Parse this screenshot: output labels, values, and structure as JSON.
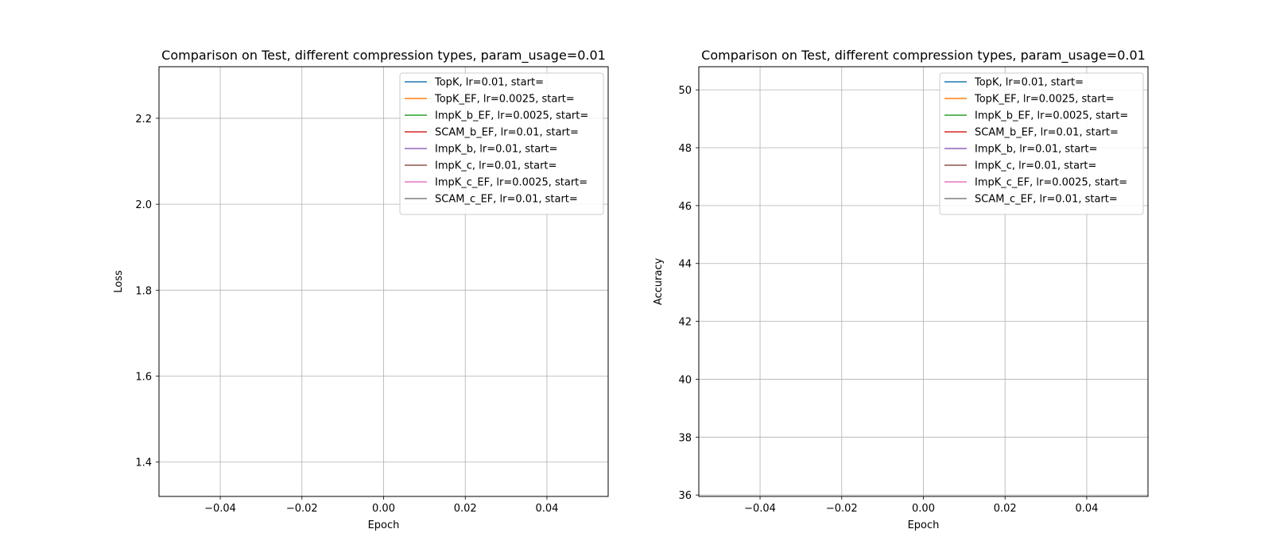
{
  "chart_data": [
    {
      "type": "line",
      "title": "Comparison on Test, different compression types, param_usage=0.01",
      "xlabel": "Epoch",
      "ylabel": "Loss",
      "xlim": [
        -0.055,
        0.055
      ],
      "ylim": [
        1.32,
        2.32
      ],
      "xticks": [
        -0.04,
        -0.02,
        0.0,
        0.02,
        0.04
      ],
      "xtick_labels": [
        "−0.04",
        "−0.02",
        "0.00",
        "0.02",
        "0.04"
      ],
      "yticks": [
        1.4,
        1.6,
        1.8,
        2.0,
        2.2
      ],
      "ytick_labels": [
        "1.4",
        "1.6",
        "1.8",
        "2.0",
        "2.2"
      ],
      "grid": true,
      "legend_position": "top-right",
      "series": [
        {
          "name": "TopK, lr=0.01, start=",
          "color": "#1f77b4",
          "x": [],
          "y": []
        },
        {
          "name": "TopK_EF, lr=0.0025, start=",
          "color": "#ff7f0e",
          "x": [],
          "y": []
        },
        {
          "name": "ImpK_b_EF, lr=0.0025, start=",
          "color": "#2ca02c",
          "x": [],
          "y": []
        },
        {
          "name": "SCAM_b_EF, lr=0.01, start=",
          "color": "#d62728",
          "x": [],
          "y": []
        },
        {
          "name": "ImpK_b, lr=0.01, start=",
          "color": "#9467bd",
          "x": [],
          "y": []
        },
        {
          "name": "ImpK_c, lr=0.01, start=",
          "color": "#8c564b",
          "x": [],
          "y": []
        },
        {
          "name": "ImpK_c_EF, lr=0.0025, start=",
          "color": "#e377c2",
          "x": [],
          "y": []
        },
        {
          "name": "SCAM_c_EF, lr=0.01, start=",
          "color": "#7f7f7f",
          "x": [],
          "y": []
        }
      ]
    },
    {
      "type": "line",
      "title": "Comparison on Test, different compression types, param_usage=0.01",
      "xlabel": "Epoch",
      "ylabel": "Accuracy",
      "xlim": [
        -0.055,
        0.055
      ],
      "ylim": [
        35.95,
        50.8
      ],
      "xticks": [
        -0.04,
        -0.02,
        0.0,
        0.02,
        0.04
      ],
      "xtick_labels": [
        "−0.04",
        "−0.02",
        "0.00",
        "0.02",
        "0.04"
      ],
      "yticks": [
        36,
        38,
        40,
        42,
        44,
        46,
        48,
        50
      ],
      "ytick_labels": [
        "36",
        "38",
        "40",
        "42",
        "44",
        "46",
        "48",
        "50"
      ],
      "grid": true,
      "legend_position": "top-right",
      "series": [
        {
          "name": "TopK, lr=0.01, start=",
          "color": "#1f77b4",
          "x": [],
          "y": []
        },
        {
          "name": "TopK_EF, lr=0.0025, start=",
          "color": "#ff7f0e",
          "x": [],
          "y": []
        },
        {
          "name": "ImpK_b_EF, lr=0.0025, start=",
          "color": "#2ca02c",
          "x": [],
          "y": []
        },
        {
          "name": "SCAM_b_EF, lr=0.01, start=",
          "color": "#d62728",
          "x": [],
          "y": []
        },
        {
          "name": "ImpK_b, lr=0.01, start=",
          "color": "#9467bd",
          "x": [],
          "y": []
        },
        {
          "name": "ImpK_c, lr=0.01, start=",
          "color": "#8c564b",
          "x": [],
          "y": []
        },
        {
          "name": "ImpK_c_EF, lr=0.0025, start=",
          "color": "#e377c2",
          "x": [],
          "y": []
        },
        {
          "name": "SCAM_c_EF, lr=0.01, start=",
          "color": "#7f7f7f",
          "x": [],
          "y": []
        }
      ]
    }
  ]
}
